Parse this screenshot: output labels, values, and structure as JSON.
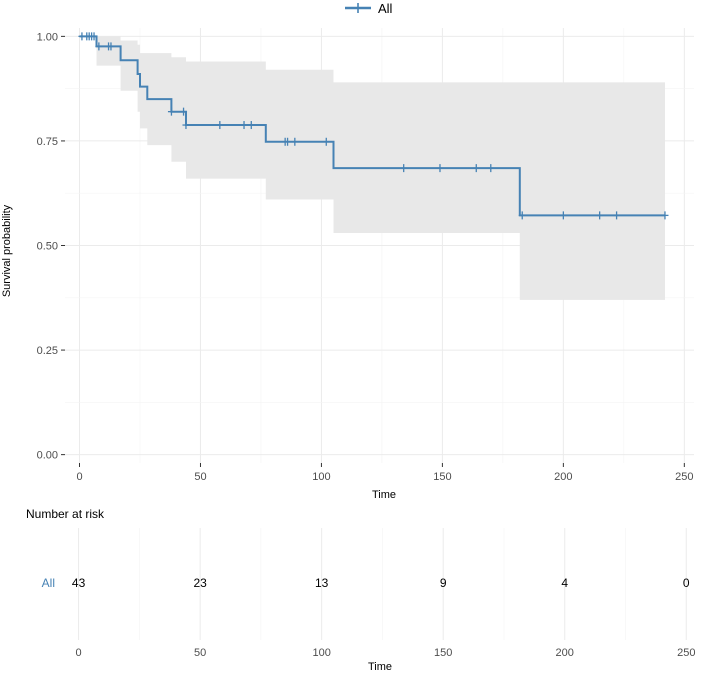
{
  "chart_data": {
    "type": "line",
    "subtype": "kaplan-meier",
    "xlabel": "Time",
    "ylabel": "Survival probability",
    "xlim": [
      -6,
      254
    ],
    "ylim": [
      -0.02,
      1.02
    ],
    "x_ticks": [
      0,
      50,
      100,
      150,
      200,
      250
    ],
    "x_tick_labels": [
      "0",
      "50",
      "100",
      "150",
      "200",
      "250"
    ],
    "y_ticks": [
      0,
      0.25,
      0.5,
      0.75,
      1.0
    ],
    "y_tick_labels": [
      "0.00",
      "0.25",
      "0.50",
      "0.75",
      "1.00"
    ],
    "grid": true,
    "legend": {
      "position": "top",
      "entries": [
        "All"
      ]
    },
    "series": [
      {
        "name": "All",
        "color": "#4682B4",
        "steps": [
          {
            "x": 0,
            "y": 1.0
          },
          {
            "x": 7,
            "y": 0.976
          },
          {
            "x": 17,
            "y": 0.943
          },
          {
            "x": 24,
            "y": 0.91
          },
          {
            "x": 25,
            "y": 0.88
          },
          {
            "x": 28,
            "y": 0.85
          },
          {
            "x": 38,
            "y": 0.82
          },
          {
            "x": 44,
            "y": 0.788
          },
          {
            "x": 77,
            "y": 0.748
          },
          {
            "x": 105,
            "y": 0.685
          },
          {
            "x": 182,
            "y": 0.572
          },
          {
            "x": 242,
            "y": 0.572
          }
        ],
        "ci": [
          {
            "x": 0,
            "lower": 1.0,
            "upper": 1.0
          },
          {
            "x": 7,
            "lower": 0.93,
            "upper": 1.0
          },
          {
            "x": 17,
            "lower": 0.87,
            "upper": 0.99
          },
          {
            "x": 24,
            "lower": 0.82,
            "upper": 0.98
          },
          {
            "x": 25,
            "lower": 0.78,
            "upper": 0.96
          },
          {
            "x": 28,
            "lower": 0.74,
            "upper": 0.96
          },
          {
            "x": 38,
            "lower": 0.7,
            "upper": 0.95
          },
          {
            "x": 44,
            "lower": 0.66,
            "upper": 0.94
          },
          {
            "x": 77,
            "lower": 0.61,
            "upper": 0.92
          },
          {
            "x": 105,
            "lower": 0.53,
            "upper": 0.89
          },
          {
            "x": 182,
            "lower": 0.37,
            "upper": 0.89
          },
          {
            "x": 242,
            "lower": 0.37,
            "upper": 0.89
          }
        ],
        "censored": [
          {
            "x": 1,
            "y": 1.0
          },
          {
            "x": 3,
            "y": 1.0
          },
          {
            "x": 4,
            "y": 1.0
          },
          {
            "x": 5,
            "y": 1.0
          },
          {
            "x": 6,
            "y": 1.0
          },
          {
            "x": 8,
            "y": 0.976
          },
          {
            "x": 12,
            "y": 0.976
          },
          {
            "x": 13,
            "y": 0.976
          },
          {
            "x": 38,
            "y": 0.82
          },
          {
            "x": 43,
            "y": 0.82
          },
          {
            "x": 44,
            "y": 0.788
          },
          {
            "x": 58,
            "y": 0.788
          },
          {
            "x": 68,
            "y": 0.788
          },
          {
            "x": 71,
            "y": 0.788
          },
          {
            "x": 85,
            "y": 0.748
          },
          {
            "x": 86,
            "y": 0.748
          },
          {
            "x": 89,
            "y": 0.748
          },
          {
            "x": 102,
            "y": 0.748
          },
          {
            "x": 134,
            "y": 0.685
          },
          {
            "x": 149,
            "y": 0.685
          },
          {
            "x": 164,
            "y": 0.685
          },
          {
            "x": 170,
            "y": 0.685
          },
          {
            "x": 183,
            "y": 0.572
          },
          {
            "x": 200,
            "y": 0.572
          },
          {
            "x": 215,
            "y": 0.572
          },
          {
            "x": 222,
            "y": 0.572
          },
          {
            "x": 242,
            "y": 0.572
          }
        ]
      }
    ],
    "risk_table": {
      "title": "Number at risk",
      "xlabel": "Time",
      "row_label": "All",
      "times": [
        0,
        50,
        100,
        150,
        200,
        250
      ],
      "time_labels": [
        "0",
        "50",
        "100",
        "150",
        "200",
        "250"
      ],
      "values": [
        "43",
        "23",
        "13",
        "9",
        "4",
        "0"
      ]
    }
  }
}
